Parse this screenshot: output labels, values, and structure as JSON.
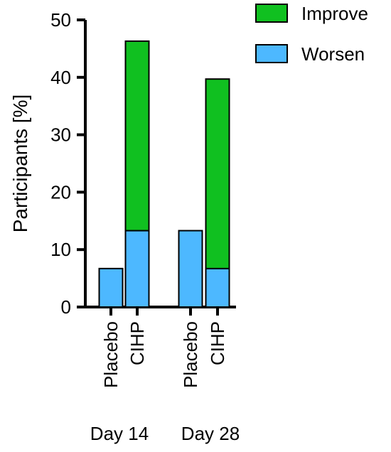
{
  "chart_data": {
    "type": "bar",
    "stacked": true,
    "ylabel": "Participants [%]",
    "xlabel": "",
    "ylim": [
      0,
      50
    ],
    "yticks": [
      0,
      10,
      20,
      30,
      40,
      50
    ],
    "legend_position": "top-right",
    "groups": [
      "Day 14",
      "Day 28"
    ],
    "categories": [
      "Placebo",
      "CIHP",
      "Placebo",
      "CIHP"
    ],
    "series": [
      {
        "name": "Worsen",
        "color": "#4db8ff",
        "values": [
          6.7,
          13.3,
          13.3,
          6.7
        ]
      },
      {
        "name": "Improve",
        "color": "#10c020",
        "values": [
          0,
          33.0,
          0,
          33.0
        ]
      }
    ],
    "legend_order": [
      "Improve",
      "Worsen"
    ]
  }
}
